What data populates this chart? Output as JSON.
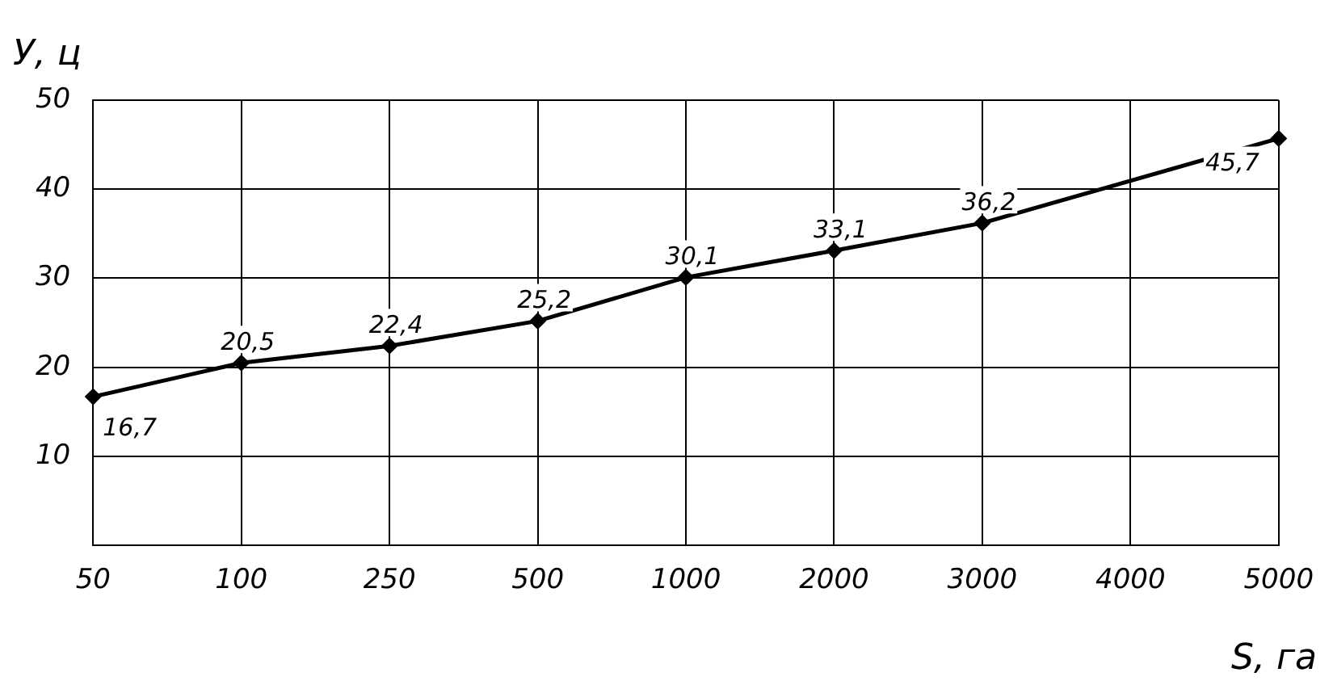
{
  "chart_data": {
    "type": "line",
    "xlabel": "S, га",
    "ylabel": "У, ц",
    "categories": [
      "50",
      "100",
      "250",
      "500",
      "1000",
      "2000",
      "3000",
      "4000",
      "5000"
    ],
    "series": [
      {
        "color": "#000000",
        "values": [
          16.7,
          20.5,
          22.4,
          25.2,
          30.1,
          33.1,
          36.2,
          null,
          45.7
        ],
        "value_labels": [
          "16,7",
          "20,5",
          "22,4",
          "25,2",
          "30,1",
          "33,1",
          "36,2",
          null,
          "45,7"
        ]
      }
    ],
    "ylim": [
      0,
      50
    ],
    "yticks": [
      10,
      20,
      30,
      40,
      50
    ],
    "grid": true,
    "legend": false,
    "marker": "diamond",
    "line_style": "solid"
  }
}
